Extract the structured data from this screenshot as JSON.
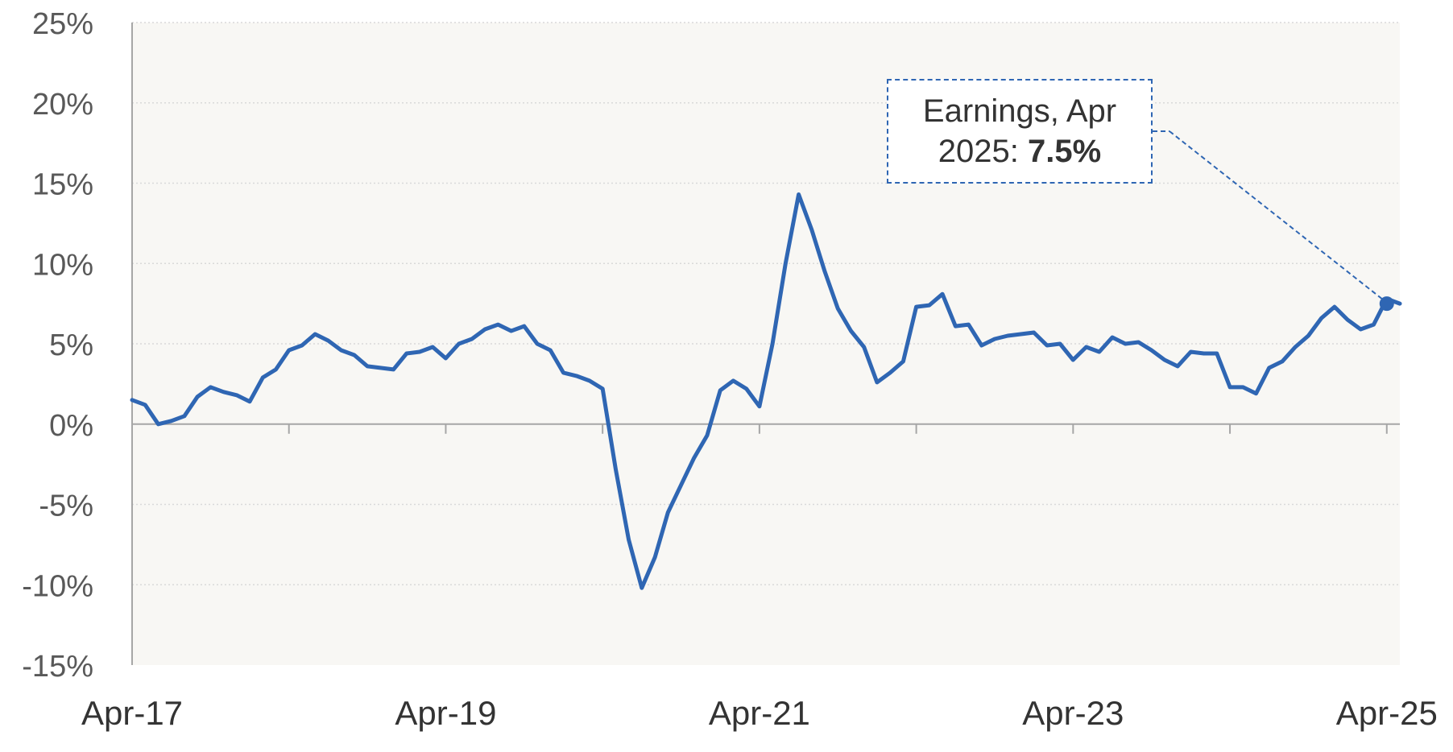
{
  "chart_data": {
    "type": "line",
    "title": "",
    "xlabel": "",
    "ylabel": "",
    "ylim": [
      -15,
      25
    ],
    "yticks": [
      "25%",
      "20%",
      "15%",
      "10%",
      "5%",
      "0%",
      "-5%",
      "-10%",
      "-15%"
    ],
    "xtick_labels": [
      "Apr-17",
      "Apr-19",
      "Apr-21",
      "Apr-23",
      "Apr-25"
    ],
    "x_range": [
      "2017-04",
      "2025-04"
    ],
    "grid": true,
    "colors": {
      "line": "#2F66B3",
      "plot_bg": "#F8F7F4",
      "grid": "#D9D9D9",
      "axis": "#A6A6A6"
    },
    "series": [
      {
        "start": "2017-04",
        "frequency": "monthly",
        "values": [
          1.5,
          1.2,
          0.0,
          0.2,
          0.5,
          1.7,
          2.3,
          2.0,
          1.8,
          1.4,
          2.9,
          3.4,
          4.6,
          4.9,
          5.6,
          5.2,
          4.6,
          4.3,
          3.6,
          3.5,
          3.4,
          4.4,
          4.5,
          4.8,
          4.1,
          5.0,
          5.3,
          5.9,
          6.2,
          5.8,
          6.1,
          5.0,
          4.6,
          3.2,
          3.0,
          2.7,
          2.2,
          -2.8,
          -7.2,
          -10.2,
          -8.3,
          -5.5,
          -3.8,
          -2.1,
          -0.7,
          2.1,
          2.7,
          2.2,
          1.1,
          5.0,
          10.0,
          14.3,
          12.1,
          9.5,
          7.2,
          5.8,
          4.8,
          2.6,
          3.2,
          3.9,
          7.3,
          7.4,
          8.1,
          6.1,
          6.2,
          4.9,
          5.3,
          5.5,
          5.6,
          5.7,
          4.9,
          5.0,
          4.0,
          4.8,
          4.5,
          5.4,
          5.0,
          5.1,
          4.6,
          4.0,
          3.6,
          4.5,
          4.4,
          4.4,
          2.3,
          2.3,
          1.9,
          3.5,
          3.9,
          4.8,
          5.5,
          6.6,
          7.3,
          6.5,
          5.9,
          6.2,
          7.8,
          7.5
        ]
      }
    ],
    "annotation": {
      "line1": "Earnings, Apr",
      "line2_prefix": "2025: ",
      "line2_value": "7.5%",
      "point": {
        "x": "2025-04",
        "y": 7.5
      }
    }
  }
}
